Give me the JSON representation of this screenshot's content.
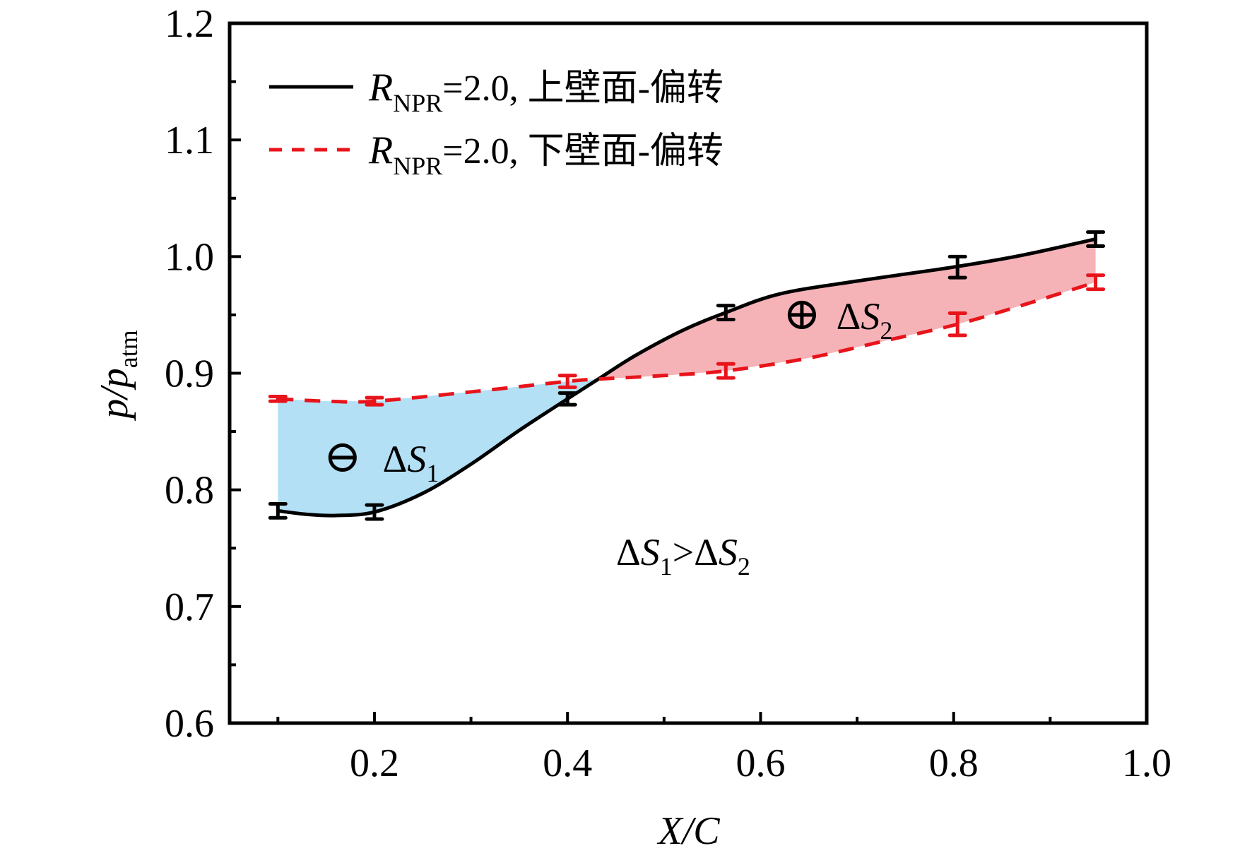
{
  "chart_data": {
    "type": "line",
    "title": "",
    "xlabel": {
      "main": "X/C"
    },
    "ylabel": {
      "main": "p/p",
      "sub": "atm"
    },
    "xlim": [
      0.05,
      1.0
    ],
    "ylim": [
      0.6,
      1.2
    ],
    "x_ticks": [
      0.2,
      0.4,
      0.6,
      0.8,
      1.0
    ],
    "x_tick_labels": [
      "0.2",
      "0.4",
      "0.6",
      "0.8",
      "1.0"
    ],
    "x_minor_ticks": [
      0.1,
      0.3,
      0.5,
      0.7,
      0.9
    ],
    "y_ticks": [
      0.6,
      0.7,
      0.8,
      0.9,
      1.0,
      1.1,
      1.2
    ],
    "y_tick_labels": [
      "0.6",
      "0.7",
      "0.8",
      "0.9",
      "1.0",
      "1.1",
      "1.2"
    ],
    "y_minor_ticks": [
      0.65,
      0.75,
      0.85,
      0.95,
      1.05,
      1.15
    ],
    "grid": false,
    "legend_position": "top-left",
    "series": [
      {
        "name": "R_NPR=2.0, 上壁面-偏转",
        "legend": {
          "var": "R",
          "sub": "NPR",
          "rest": "=2.0, 上壁面-偏转"
        },
        "color": "#000000",
        "style": "solid",
        "x": [
          0.1,
          0.2,
          0.4,
          0.564,
          0.804,
          0.947
        ],
        "y": [
          0.782,
          0.781,
          0.878,
          0.952,
          0.991,
          1.015
        ],
        "error": [
          0.006,
          0.006,
          0.005,
          0.006,
          0.009,
          0.006
        ],
        "curve_x": [
          0.1,
          0.13,
          0.16,
          0.2,
          0.25,
          0.3,
          0.35,
          0.4,
          0.432,
          0.47,
          0.52,
          0.564,
          0.62,
          0.7,
          0.8,
          0.87,
          0.947
        ],
        "curve_y": [
          0.782,
          0.779,
          0.778,
          0.781,
          0.797,
          0.822,
          0.851,
          0.878,
          0.895,
          0.915,
          0.937,
          0.952,
          0.968,
          0.979,
          0.991,
          1.001,
          1.015
        ]
      },
      {
        "name": "R_NPR=2.0, 下壁面-偏转",
        "legend": {
          "var": "R",
          "sub": "NPR",
          "rest": "=2.0, 下壁面-偏转"
        },
        "color": "#e8141b",
        "style": "dashed",
        "x": [
          0.1,
          0.2,
          0.4,
          0.564,
          0.804,
          0.947
        ],
        "y": [
          0.878,
          0.876,
          0.893,
          0.902,
          0.942,
          0.978
        ],
        "error": [
          0.002,
          0.003,
          0.005,
          0.006,
          0.0095,
          0.006
        ],
        "curve_x": [
          0.1,
          0.15,
          0.2,
          0.3,
          0.4,
          0.432,
          0.5,
          0.564,
          0.65,
          0.73,
          0.804,
          0.87,
          0.947
        ],
        "curve_y": [
          0.878,
          0.876,
          0.876,
          0.884,
          0.893,
          0.895,
          0.898,
          0.902,
          0.913,
          0.928,
          0.942,
          0.958,
          0.978
        ]
      }
    ],
    "filled_regions": [
      {
        "name": "ΔS1",
        "sign": "negative",
        "x_range": [
          0.1,
          0.432
        ],
        "color": "#b3e0f5"
      },
      {
        "name": "ΔS2",
        "sign": "positive",
        "x_range": [
          0.432,
          0.947
        ],
        "color": "#f5b3b8"
      }
    ],
    "annotations": [
      {
        "id": "ds1",
        "symbol": "⊖",
        "delta": "Δ",
        "var": "S",
        "sub": "1",
        "x": 0.17,
        "y": 0.83
      },
      {
        "id": "ds2",
        "symbol": "⊕",
        "delta": "Δ",
        "var": "S",
        "sub": "2",
        "x": 0.64,
        "y": 0.94
      },
      {
        "id": "compare",
        "text_parts": [
          "Δ",
          "S",
          "1",
          ">Δ",
          "S",
          "2"
        ],
        "x": 0.5,
        "y": 0.75
      }
    ]
  }
}
